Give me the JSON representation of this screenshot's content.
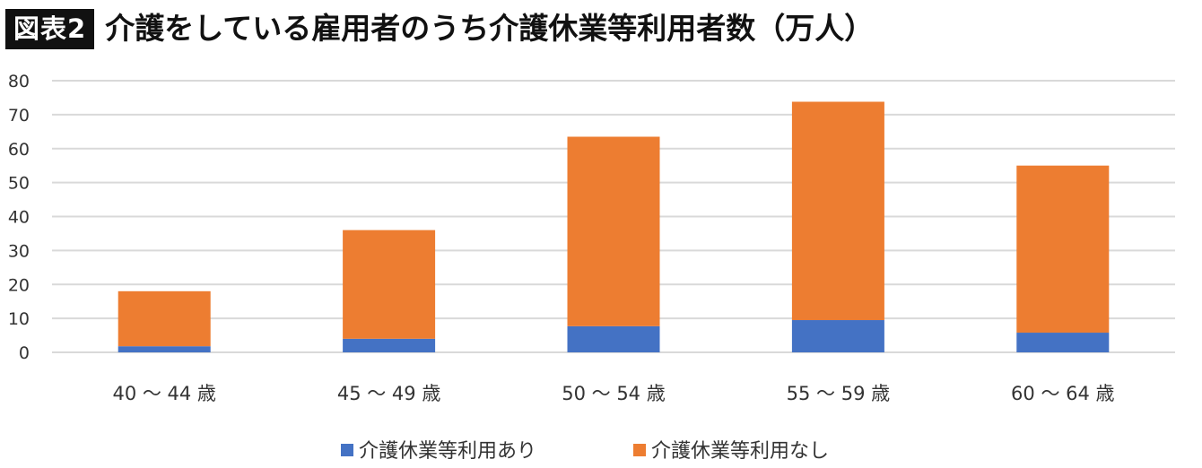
{
  "header": {
    "figure_tag": "図表2",
    "title": "介護をしている雇用者のうち介護休業等利用者数（万人）"
  },
  "chart_data": {
    "type": "bar",
    "stacked": true,
    "title": "介護をしている雇用者のうち介護休業等利用者数（万人）",
    "xlabel": "",
    "ylabel": "",
    "ylim": [
      0,
      80
    ],
    "yticks": [
      0,
      10,
      20,
      30,
      40,
      50,
      60,
      70,
      80
    ],
    "grid": true,
    "legend_position": "bottom",
    "categories": [
      "40 ～ 44 歳",
      "45 ～ 49 歳",
      "50 ～ 54 歳",
      "55 ～ 59 歳",
      "60 ～ 64 歳"
    ],
    "series": [
      {
        "name": "介護休業等利用あり",
        "color": "#4472C4",
        "values": [
          1.8,
          4.0,
          7.7,
          9.5,
          5.8
        ]
      },
      {
        "name": "介護休業等利用なし",
        "color": "#ED7D31",
        "values": [
          16.2,
          32.0,
          55.8,
          64.3,
          49.2
        ]
      }
    ]
  }
}
